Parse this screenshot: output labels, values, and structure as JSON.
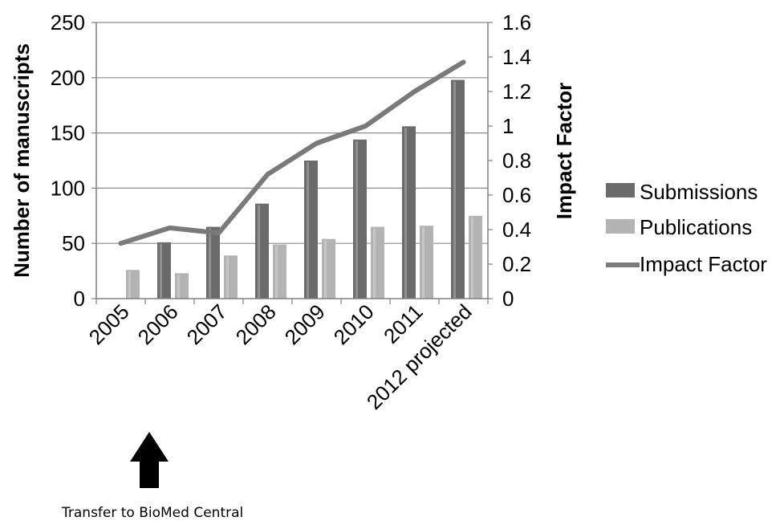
{
  "chart_data": {
    "type": "bar",
    "categories": [
      "2005",
      "2006",
      "2007",
      "2008",
      "2009",
      "2010",
      "2011",
      "2012 projected"
    ],
    "series": [
      {
        "name": "Submissions",
        "kind": "bar",
        "axis": "left",
        "color": "#6b6b6b",
        "values": [
          null,
          51,
          65,
          86,
          125,
          144,
          156,
          198
        ]
      },
      {
        "name": "Publications",
        "kind": "bar",
        "axis": "left",
        "color": "#b3b3b3",
        "values": [
          26,
          23,
          39,
          49,
          54,
          65,
          66,
          75
        ]
      },
      {
        "name": "Impact Factor",
        "kind": "line",
        "axis": "right",
        "color": "#7a7a7a",
        "values": [
          0.32,
          0.41,
          0.38,
          0.72,
          0.9,
          1.0,
          1.2,
          1.37
        ]
      }
    ],
    "ylabel": "Number of manuscripts",
    "y2label": "Impact Factor",
    "ylim": [
      0,
      250
    ],
    "yticks": [
      0,
      50,
      100,
      150,
      200,
      250
    ],
    "y2lim": [
      0,
      1.6
    ],
    "y2ticks": [
      "0",
      "0.2",
      "0.4",
      "0.6",
      "0.8",
      "1",
      "1.2",
      "1.4",
      "1.6"
    ],
    "grid": true,
    "legend": "right"
  },
  "annotation": {
    "text": "Transfer to BioMed Central",
    "arrow_icon": "up-arrow-icon",
    "category": "2006"
  }
}
